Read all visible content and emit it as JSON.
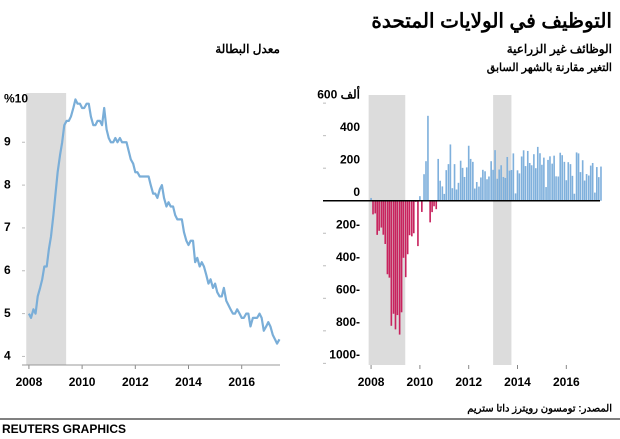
{
  "title": "التوظيف في الولايات المتحدة",
  "source": "المصدر: تومسون رويترز داتا ستريم",
  "footer": "REUTERS GRAPHICS",
  "chart_data": [
    {
      "type": "line",
      "title": "معدل البطالة",
      "color": "#7aaed8",
      "shade_color": "#dcdcdc",
      "shaded": [
        [
          2007.9,
          2009.4
        ]
      ],
      "xlim": [
        2007.74,
        2017.44
      ],
      "xticks": [
        2008,
        2010,
        2012,
        2014,
        2016
      ],
      "ylim": [
        3.8,
        10.15
      ],
      "yticks": [
        4,
        5,
        6,
        7,
        8,
        9,
        {
          "value": 10,
          "label": "%10"
        }
      ],
      "x": [
        2008.0,
        2008.08,
        2008.17,
        2008.25,
        2008.33,
        2008.42,
        2008.5,
        2008.58,
        2008.67,
        2008.75,
        2008.83,
        2008.92,
        2009.0,
        2009.08,
        2009.17,
        2009.25,
        2009.33,
        2009.42,
        2009.5,
        2009.58,
        2009.67,
        2009.75,
        2009.83,
        2009.92,
        2010.0,
        2010.08,
        2010.17,
        2010.25,
        2010.33,
        2010.42,
        2010.5,
        2010.58,
        2010.67,
        2010.75,
        2010.83,
        2010.92,
        2011.0,
        2011.08,
        2011.17,
        2011.25,
        2011.33,
        2011.42,
        2011.5,
        2011.58,
        2011.67,
        2011.75,
        2011.83,
        2011.92,
        2012.0,
        2012.08,
        2012.17,
        2012.25,
        2012.33,
        2012.42,
        2012.5,
        2012.58,
        2012.67,
        2012.75,
        2012.83,
        2012.92,
        2013.0,
        2013.08,
        2013.17,
        2013.25,
        2013.33,
        2013.42,
        2013.5,
        2013.58,
        2013.67,
        2013.75,
        2013.83,
        2013.92,
        2014.0,
        2014.08,
        2014.17,
        2014.25,
        2014.33,
        2014.42,
        2014.5,
        2014.58,
        2014.67,
        2014.75,
        2014.83,
        2014.92,
        2015.0,
        2015.08,
        2015.17,
        2015.25,
        2015.33,
        2015.42,
        2015.5,
        2015.58,
        2015.67,
        2015.75,
        2015.83,
        2015.92,
        2016.0,
        2016.08,
        2016.17,
        2016.25,
        2016.33,
        2016.42,
        2016.5,
        2016.58,
        2016.67,
        2016.75,
        2016.83,
        2016.92,
        2017.0,
        2017.08,
        2017.17,
        2017.25,
        2017.33,
        2017.42
      ],
      "values": [
        5.0,
        4.9,
        5.1,
        5.0,
        5.4,
        5.6,
        5.8,
        6.1,
        6.1,
        6.5,
        6.8,
        7.3,
        7.8,
        8.3,
        8.7,
        9.0,
        9.4,
        9.5,
        9.5,
        9.6,
        9.8,
        10.0,
        9.9,
        9.9,
        9.8,
        9.8,
        9.9,
        9.9,
        9.6,
        9.4,
        9.4,
        9.5,
        9.5,
        9.4,
        9.8,
        9.3,
        9.1,
        9.0,
        9.0,
        9.1,
        9.0,
        9.1,
        9.0,
        9.0,
        9.0,
        8.8,
        8.6,
        8.5,
        8.3,
        8.3,
        8.2,
        8.2,
        8.2,
        8.2,
        8.2,
        8.0,
        7.8,
        7.8,
        7.7,
        7.9,
        8.0,
        7.7,
        7.5,
        7.6,
        7.5,
        7.5,
        7.3,
        7.2,
        7.2,
        7.2,
        6.9,
        6.7,
        6.6,
        6.7,
        6.7,
        6.2,
        6.3,
        6.1,
        6.2,
        6.1,
        5.9,
        5.7,
        5.8,
        5.6,
        5.7,
        5.5,
        5.4,
        5.4,
        5.6,
        5.3,
        5.2,
        5.1,
        5.0,
        5.0,
        5.1,
        5.0,
        4.9,
        4.9,
        5.0,
        5.0,
        4.7,
        4.9,
        4.9,
        4.9,
        5.0,
        4.9,
        4.6,
        4.7,
        4.8,
        4.7,
        4.5,
        4.4,
        4.3,
        4.4
      ]
    },
    {
      "type": "bar",
      "title": "الوظائف غير الزراعية",
      "subtitle": "التغير مقارنة بالشهر السابق",
      "color": "#7fb0dc",
      "negative_color": "#c8235e",
      "shade_color": "#dcdcdc",
      "shaded": [
        [
          2007.9,
          2009.4
        ],
        [
          2013.0,
          2013.75
        ]
      ],
      "xlim": [
        2006.03,
        2017.38
      ],
      "xticks": [
        2008,
        2010,
        2012,
        2014,
        2016
      ],
      "ylim": [
        -1010,
        650
      ],
      "yticks": [
        {
          "value": 600,
          "label": "ألف 600"
        },
        400,
        200,
        0,
        {
          "value": -200,
          "label": "200-"
        },
        {
          "value": -400,
          "label": "400-"
        },
        {
          "value": -600,
          "label": "600-"
        },
        {
          "value": -800,
          "label": "800-"
        },
        {
          "value": -1000,
          "label": "1000-"
        }
      ],
      "x": [
        2008.0,
        2008.08,
        2008.17,
        2008.25,
        2008.33,
        2008.42,
        2008.5,
        2008.58,
        2008.67,
        2008.75,
        2008.83,
        2008.92,
        2009.0,
        2009.08,
        2009.17,
        2009.25,
        2009.33,
        2009.42,
        2009.5,
        2009.58,
        2009.67,
        2009.75,
        2009.83,
        2009.92,
        2010.0,
        2010.08,
        2010.17,
        2010.25,
        2010.33,
        2010.42,
        2010.5,
        2010.58,
        2010.67,
        2010.75,
        2010.83,
        2010.92,
        2011.0,
        2011.08,
        2011.17,
        2011.25,
        2011.33,
        2011.42,
        2011.5,
        2011.58,
        2011.67,
        2011.75,
        2011.83,
        2011.92,
        2012.0,
        2012.08,
        2012.17,
        2012.25,
        2012.33,
        2012.42,
        2012.5,
        2012.58,
        2012.67,
        2012.75,
        2012.83,
        2012.92,
        2013.0,
        2013.08,
        2013.17,
        2013.25,
        2013.33,
        2013.42,
        2013.5,
        2013.58,
        2013.67,
        2013.75,
        2013.83,
        2013.92,
        2014.0,
        2014.08,
        2014.17,
        2014.25,
        2014.33,
        2014.42,
        2014.5,
        2014.58,
        2014.67,
        2014.75,
        2014.83,
        2014.92,
        2015.0,
        2015.08,
        2015.17,
        2015.25,
        2015.33,
        2015.42,
        2015.5,
        2015.58,
        2015.67,
        2015.75,
        2015.83,
        2015.92,
        2016.0,
        2016.08,
        2016.17,
        2016.25,
        2016.33,
        2016.42,
        2016.5,
        2016.58,
        2016.67,
        2016.75,
        2016.83,
        2016.92,
        2017.0,
        2017.08,
        2017.17,
        2017.25,
        2017.33,
        2017.42
      ],
      "values": [
        17,
        -84,
        -78,
        -210,
        -185,
        -165,
        -209,
        -266,
        -452,
        -473,
        -769,
        -695,
        -791,
        -703,
        -823,
        -686,
        -351,
        -470,
        -329,
        -212,
        -219,
        -200,
        -7,
        -279,
        28,
        -69,
        163,
        243,
        522,
        -133,
        -70,
        -34,
        -52,
        257,
        123,
        88,
        42,
        188,
        225,
        346,
        77,
        225,
        69,
        110,
        246,
        202,
        146,
        205,
        338,
        257,
        239,
        75,
        115,
        87,
        143,
        190,
        181,
        132,
        149,
        243,
        190,
        311,
        135,
        192,
        218,
        146,
        140,
        269,
        185,
        189,
        291,
        45,
        187,
        168,
        272,
        310,
        213,
        306,
        232,
        218,
        286,
        200,
        331,
        292,
        221,
        265,
        84,
        251,
        273,
        228,
        277,
        150,
        149,
        295,
        280,
        239,
        126,
        237,
        225,
        153,
        43,
        297,
        291,
        176,
        249,
        124,
        164,
        155,
        216,
        232,
        50,
        207,
        145,
        210
      ]
    }
  ]
}
